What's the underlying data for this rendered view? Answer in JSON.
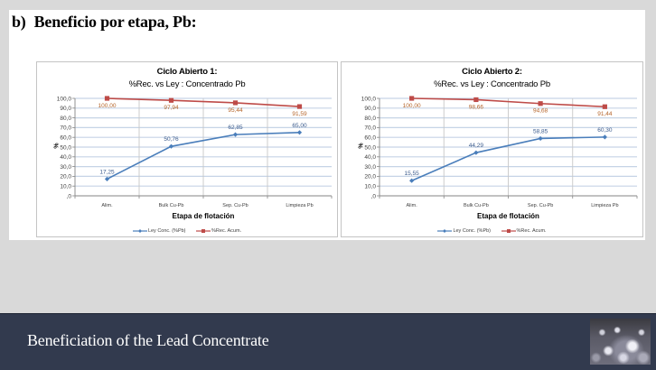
{
  "page": {
    "heading_marker": "b)",
    "heading_text": "Beneficio por etapa, Pb:",
    "footer_title": "Beneficiation of the Lead Concentrate",
    "footer_image": "bubbles-froth-thumbnail",
    "colors": {
      "background": "#d9d9d9",
      "footer": "#323a4e",
      "series_ley": "#4a7ebb",
      "series_rec": "#be4b48",
      "label_ley": "#3a5a8c",
      "label_rec": "#b5652a",
      "gridline": "#c6d4e6"
    }
  },
  "chart_data": [
    {
      "type": "line",
      "title": "Ciclo Abierto 1:",
      "subtitle": "%Rec. vs Ley : Concentrado Pb",
      "xlabel": "Etapa de flotación",
      "ylabel": "%",
      "categories": [
        "Alim.",
        "Bulk Cu-Pb",
        "Sep. Cu-Pb",
        "Limpieza Pb"
      ],
      "ylim": [
        0,
        100
      ],
      "y_ticks": [
        0,
        10,
        20,
        30,
        40,
        50,
        60,
        70,
        80,
        90,
        100
      ],
      "y_tick_labels": [
        ",0",
        "10,0",
        "20,0",
        "30,0",
        "40,0",
        "50,0",
        "60,0",
        "70,0",
        "80,0",
        "90,0",
        "100,0"
      ],
      "grid": true,
      "legend_position": "bottom",
      "series": [
        {
          "name": "Ley Conc. (%Pb)",
          "values": [
            17.25,
            50.76,
            62.85,
            65.0
          ],
          "labels": [
            "17,25",
            "50,76",
            "62,85",
            "65,00"
          ],
          "color": "#4a7ebb",
          "label_color": "#3a5a8c",
          "marker": "diamond",
          "label_position": "above"
        },
        {
          "name": "%Rec. Acum.",
          "values": [
            100.0,
            97.94,
            95.44,
            91.59
          ],
          "labels": [
            "100,00",
            "97,94",
            "95,44",
            "91,59"
          ],
          "color": "#be4b48",
          "label_color": "#b5652a",
          "marker": "square",
          "label_position": "below"
        }
      ]
    },
    {
      "type": "line",
      "title": "Ciclo Abierto 2:",
      "subtitle": "%Rec. vs Ley : Concentrado Pb",
      "xlabel": "Etapa de flotación",
      "ylabel": "%",
      "categories": [
        "Alim.",
        "Bulk Cu-Pb",
        "Sep. Cu-Pb",
        "Limpieza Pb"
      ],
      "ylim": [
        0,
        100
      ],
      "y_ticks": [
        0,
        10,
        20,
        30,
        40,
        50,
        60,
        70,
        80,
        90,
        100
      ],
      "y_tick_labels": [
        ",0",
        "10,0",
        "20,0",
        "30,0",
        "40,0",
        "50,0",
        "60,0",
        "70,0",
        "80,0",
        "90,0",
        "100,0"
      ],
      "grid": true,
      "legend_position": "bottom",
      "series": [
        {
          "name": "Ley Conc. (%Pb)",
          "values": [
            15.55,
            44.29,
            58.85,
            60.3
          ],
          "labels": [
            "15,55",
            "44,29",
            "58,85",
            "60,30"
          ],
          "color": "#4a7ebb",
          "label_color": "#3a5a8c",
          "marker": "diamond",
          "label_position": "above"
        },
        {
          "name": "%Rec. Acum.",
          "values": [
            100.0,
            98.66,
            94.68,
            91.44
          ],
          "labels": [
            "100,00",
            "98,66",
            "94,68",
            "91,44"
          ],
          "color": "#be4b48",
          "label_color": "#b5652a",
          "marker": "square",
          "label_position": "below"
        }
      ]
    }
  ]
}
